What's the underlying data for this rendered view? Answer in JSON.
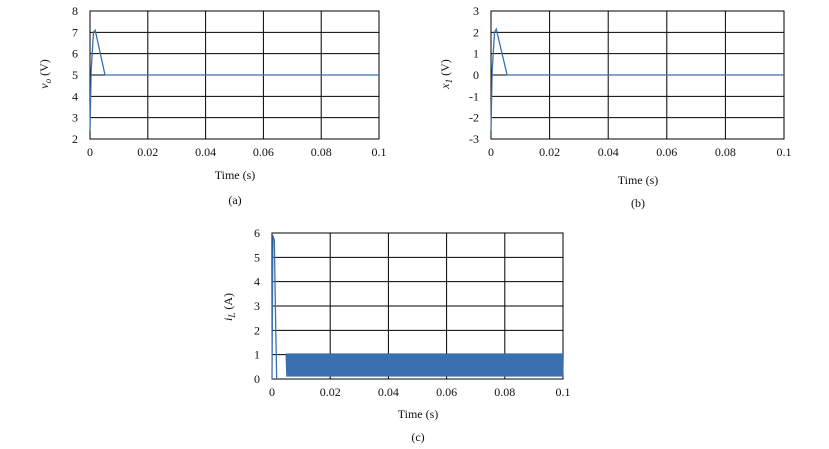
{
  "chart_data": [
    {
      "type": "line",
      "caption": "(a)",
      "xlabel": "Time (s)",
      "ylabel_main": "v",
      "ylabel_sub": "o",
      "ylabel_unit": " (V)",
      "xlim": [
        0,
        0.1
      ],
      "ylim": [
        2,
        8
      ],
      "xticks": [
        "0",
        "0.02",
        "0.04",
        "0.06",
        "0.08",
        "0.1"
      ],
      "xtick_values": [
        0,
        0.02,
        0.04,
        0.06,
        0.08,
        0.1
      ],
      "yticks": [
        "2",
        "3",
        "4",
        "5",
        "6",
        "7",
        "8"
      ],
      "ytick_values": [
        2,
        3,
        4,
        5,
        6,
        7,
        8
      ],
      "grid": true,
      "line_color": "#3a6fb0",
      "series": [
        {
          "x": [
            0,
            0.0004,
            0.0012,
            0.0018,
            0.0052,
            0.1
          ],
          "y": [
            2.4,
            5.2,
            7.0,
            7.1,
            5.0,
            5.0
          ]
        }
      ]
    },
    {
      "type": "line",
      "caption": "(b)",
      "xlabel": "Time (s)",
      "ylabel_main": "x",
      "ylabel_sub": "1",
      "ylabel_unit": " (V)",
      "xlim": [
        0,
        0.1
      ],
      "ylim": [
        -3,
        3
      ],
      "xticks": [
        "0",
        "0.02",
        "0.04",
        "0.06",
        "0.08",
        "0.1"
      ],
      "xtick_values": [
        0,
        0.02,
        0.04,
        0.06,
        0.08,
        0.1
      ],
      "yticks": [
        "-3",
        "-2",
        "-1",
        "0",
        "1",
        "2",
        "3"
      ],
      "ytick_values": [
        -3,
        -2,
        -1,
        0,
        1,
        2,
        3
      ],
      "grid": true,
      "line_color": "#3a6fb0",
      "series": [
        {
          "x": [
            0,
            0.0004,
            0.0012,
            0.0018,
            0.0055,
            0.1
          ],
          "y": [
            -2.6,
            0.2,
            2.0,
            2.15,
            0.0,
            0.0
          ]
        }
      ]
    },
    {
      "type": "line",
      "caption": "(c)",
      "xlabel": "Time (s)",
      "ylabel_main": "i",
      "ylabel_sub": "L",
      "ylabel_unit": " (A)",
      "xlim": [
        0,
        0.1
      ],
      "ylim": [
        0,
        6
      ],
      "xticks": [
        "0",
        "0.02",
        "0.04",
        "0.06",
        "0.08",
        "0.1"
      ],
      "xtick_values": [
        0,
        0.02,
        0.04,
        0.06,
        0.08,
        0.1
      ],
      "yticks": [
        "0",
        "1",
        "2",
        "3",
        "4",
        "5",
        "6"
      ],
      "ytick_values": [
        0,
        1,
        2,
        3,
        4,
        5,
        6
      ],
      "grid": true,
      "line_color": "#3a6fb0",
      "series": [
        {
          "x": [
            0,
            0.0003,
            0.0008,
            0.0013,
            0.0016
          ],
          "y": [
            0,
            5.9,
            5.7,
            2.0,
            0.0
          ]
        }
      ],
      "ripple": {
        "x_start": 0.005,
        "x_end": 0.1,
        "y_min": 0.1,
        "y_max": 1.05,
        "period": 0.00055
      }
    }
  ]
}
